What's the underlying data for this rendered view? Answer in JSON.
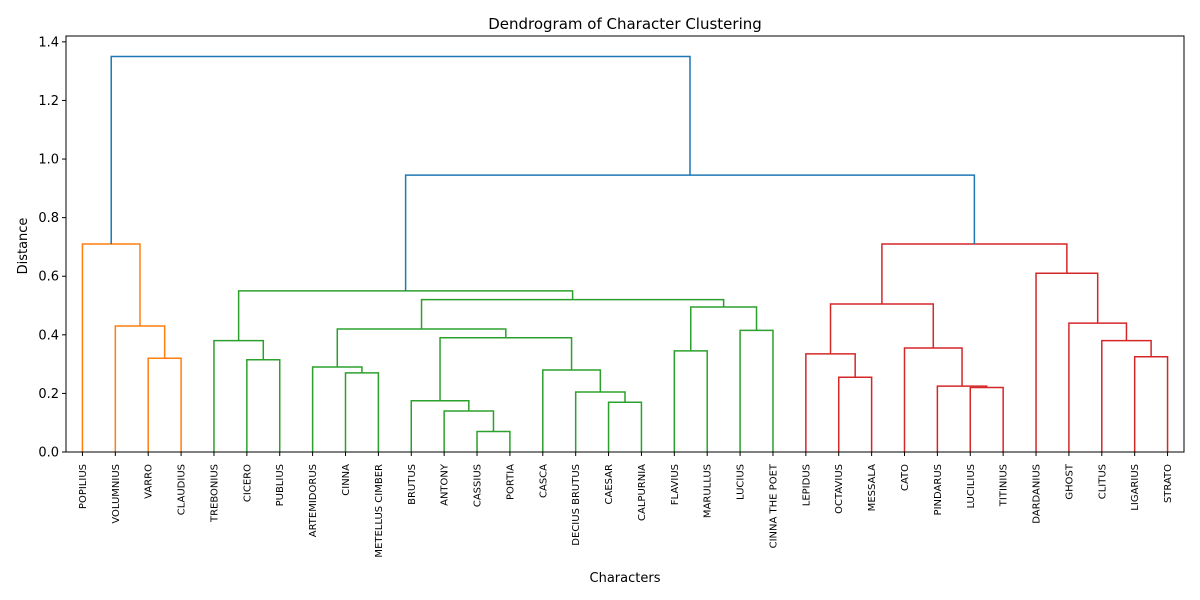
{
  "chart_data": {
    "type": "dendrogram",
    "title": "Dendrogram of Character Clustering",
    "xlabel": "Characters",
    "ylabel": "Distance",
    "ylim": [
      0,
      1.42
    ],
    "yticks": [
      0.0,
      0.2,
      0.4,
      0.6,
      0.8,
      1.0,
      1.2,
      1.4
    ],
    "ytick_labels": [
      "0.0",
      "0.2",
      "0.4",
      "0.6",
      "0.8",
      "1.0",
      "1.2",
      "1.4"
    ],
    "grid": false,
    "leaves": [
      "POPILIUS",
      "VOLUMNIUS",
      "VARRO",
      "CLAUDIUS",
      "TREBONIUS",
      "CICERO",
      "PUBLIUS",
      "ARTEMIDORUS",
      "CINNA",
      "METELLUS CIMBER",
      "BRUTUS",
      "ANTONY",
      "CASSIUS",
      "PORTIA",
      "CASCA",
      "DECIUS BRUTUS",
      "CAESAR",
      "CALPURNIA",
      "FLAVIUS",
      "MARULLUS",
      "LUCIUS",
      "CINNA THE POET",
      "LEPIDUS",
      "OCTAVIUS",
      "MESSALA",
      "CATO",
      "PINDARUS",
      "LUCILIUS",
      "TITINIUS",
      "DARDANIUS",
      "GHOST",
      "CLITUS",
      "LIGARIUS",
      "STRATO"
    ],
    "merges": [
      {
        "id": "v1",
        "left": "VARRO",
        "right": "CLAUDIUS",
        "height": 0.32,
        "color": "#ff7f0e"
      },
      {
        "id": "v2",
        "left": "VOLUMNIUS",
        "right": "v1",
        "height": 0.43,
        "color": "#ff7f0e"
      },
      {
        "id": "o",
        "left": "POPILIUS",
        "right": "v2",
        "height": 0.71,
        "color": "#ff7f0e"
      },
      {
        "id": "c1",
        "left": "CICERO",
        "right": "PUBLIUS",
        "height": 0.315,
        "color": "#2ca02c"
      },
      {
        "id": "c2",
        "left": "TREBONIUS",
        "right": "c1",
        "height": 0.38,
        "color": "#2ca02c"
      },
      {
        "id": "a1",
        "left": "CINNA",
        "right": "METELLUS CIMBER",
        "height": 0.27,
        "color": "#2ca02c"
      },
      {
        "id": "a2",
        "left": "ARTEMIDORUS",
        "right": "a1",
        "height": 0.29,
        "color": "#2ca02c"
      },
      {
        "id": "b1",
        "left": "CASSIUS",
        "right": "PORTIA",
        "height": 0.07,
        "color": "#2ca02c"
      },
      {
        "id": "b2",
        "left": "ANTONY",
        "right": "b1",
        "height": 0.14,
        "color": "#2ca02c"
      },
      {
        "id": "b3",
        "left": "BRUTUS",
        "right": "b2",
        "height": 0.175,
        "color": "#2ca02c"
      },
      {
        "id": "d1",
        "left": "CAESAR",
        "right": "CALPURNIA",
        "height": 0.17,
        "color": "#2ca02c"
      },
      {
        "id": "d2",
        "left": "DECIUS BRUTUS",
        "right": "d1",
        "height": 0.205,
        "color": "#2ca02c"
      },
      {
        "id": "d3",
        "left": "CASCA",
        "right": "d2",
        "height": 0.28,
        "color": "#2ca02c"
      },
      {
        "id": "b4",
        "left": "b3",
        "right": "d3",
        "height": 0.39,
        "color": "#2ca02c"
      },
      {
        "id": "a3",
        "left": "a2",
        "right": "b4",
        "height": 0.42,
        "color": "#2ca02c"
      },
      {
        "id": "f1",
        "left": "FLAVIUS",
        "right": "MARULLUS",
        "height": 0.345,
        "color": "#2ca02c"
      },
      {
        "id": "f2",
        "left": "LUCIUS",
        "right": "CINNA THE POET",
        "height": 0.415,
        "color": "#2ca02c"
      },
      {
        "id": "f3",
        "left": "f1",
        "right": "f2",
        "height": 0.495,
        "color": "#2ca02c"
      },
      {
        "id": "g1",
        "left": "a3",
        "right": "f3",
        "height": 0.52,
        "color": "#2ca02c"
      },
      {
        "id": "g",
        "left": "c2",
        "right": "g1",
        "height": 0.55,
        "color": "#2ca02c"
      },
      {
        "id": "r1",
        "left": "OCTAVIUS",
        "right": "MESSALA",
        "height": 0.255,
        "color": "#d62728"
      },
      {
        "id": "r2",
        "left": "LEPIDUS",
        "right": "r1",
        "height": 0.335,
        "color": "#d62728"
      },
      {
        "id": "r3",
        "left": "LUCILIUS",
        "right": "TITINIUS",
        "height": 0.22,
        "color": "#d62728"
      },
      {
        "id": "r4",
        "left": "PINDARUS",
        "right": "r3",
        "height": 0.225,
        "color": "#d62728"
      },
      {
        "id": "r5",
        "left": "CATO",
        "right": "r4",
        "height": 0.355,
        "color": "#d62728"
      },
      {
        "id": "r6",
        "left": "r2",
        "right": "r5",
        "height": 0.505,
        "color": "#d62728"
      },
      {
        "id": "s1",
        "left": "LIGARIUS",
        "right": "STRATO",
        "height": 0.325,
        "color": "#d62728"
      },
      {
        "id": "s2",
        "left": "CLITUS",
        "right": "s1",
        "height": 0.38,
        "color": "#d62728"
      },
      {
        "id": "s3",
        "left": "GHOST",
        "right": "s2",
        "height": 0.44,
        "color": "#d62728"
      },
      {
        "id": "s4",
        "left": "DARDANIUS",
        "right": "s3",
        "height": 0.61,
        "color": "#d62728"
      },
      {
        "id": "r",
        "left": "r6",
        "right": "s4",
        "height": 0.71,
        "color": "#d62728"
      },
      {
        "id": "gr",
        "left": "g",
        "right": "r",
        "height": 0.945,
        "color": "#1f77b4"
      },
      {
        "id": "root",
        "left": "o",
        "right": "gr",
        "height": 1.35,
        "color": "#1f77b4"
      }
    ]
  }
}
